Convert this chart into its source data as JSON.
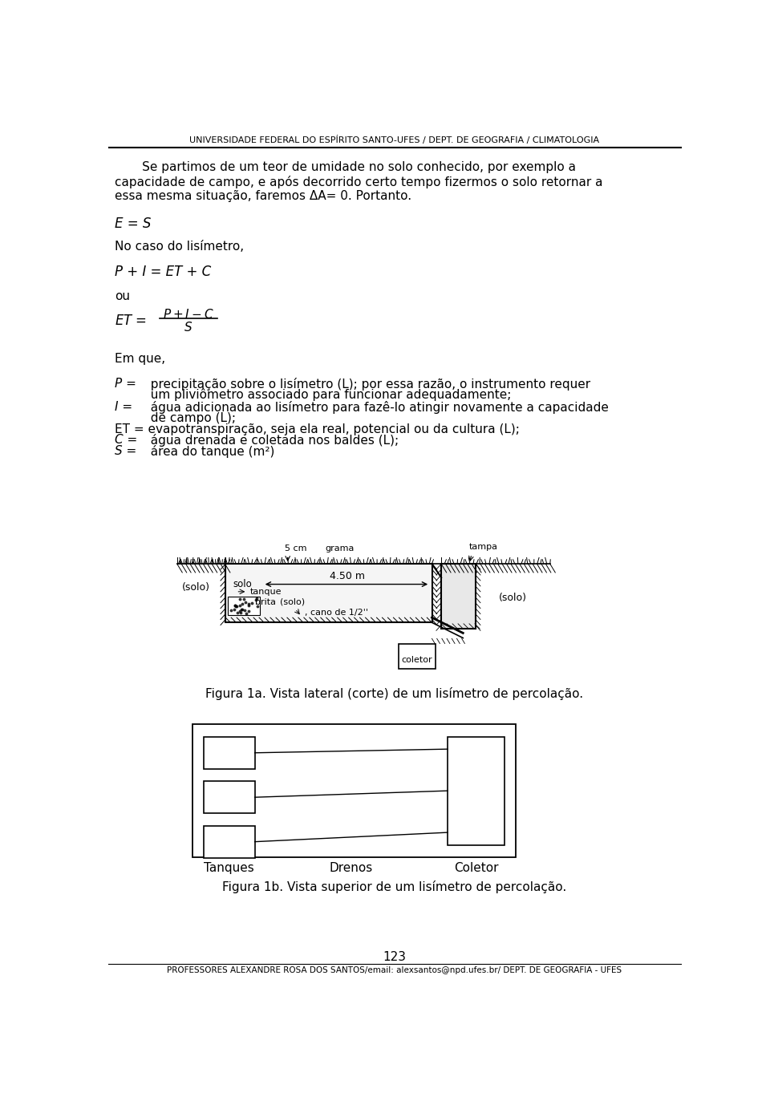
{
  "header": "UNIVERSIDADE FEDERAL DO ESPÍRITO SANTO-UFES / DEPT. DE GEOGRAFIA / CLIMATOLOGIA",
  "footer": "PROFESSORES ALEXANDRE ROSA DOS SANTOS/email: alexsantos@npd.ufes.br/ DEPT. DE GEOGRAFIA - UFES",
  "page_number": "123",
  "bg_color": "#ffffff"
}
